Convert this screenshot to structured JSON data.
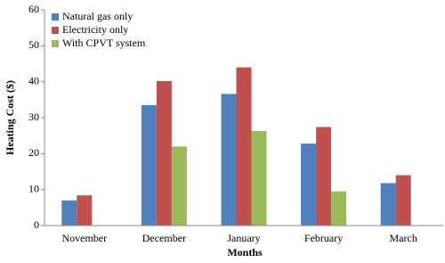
{
  "chart_data": {
    "type": "bar",
    "xlabel": "Months",
    "ylabel": "Heating Cost ($)",
    "categories": [
      "November",
      "December",
      "January",
      "February",
      "March"
    ],
    "series": [
      {
        "name": "Natural gas only",
        "color": "#4f81bd",
        "values": [
          7,
          33.5,
          36.6,
          22.8,
          11.8
        ]
      },
      {
        "name": "Electricity only",
        "color": "#c0504d",
        "values": [
          8.4,
          40.2,
          44,
          27.4,
          14
        ]
      },
      {
        "name": "With CPVT system",
        "color": "#9bbb59",
        "values": [
          null,
          22,
          26.3,
          9.5,
          null
        ]
      }
    ],
    "ylim": [
      0,
      60
    ],
    "yticks": [
      0,
      10,
      20,
      30,
      40,
      50,
      60
    ],
    "grid": false,
    "legend": "upper left"
  }
}
